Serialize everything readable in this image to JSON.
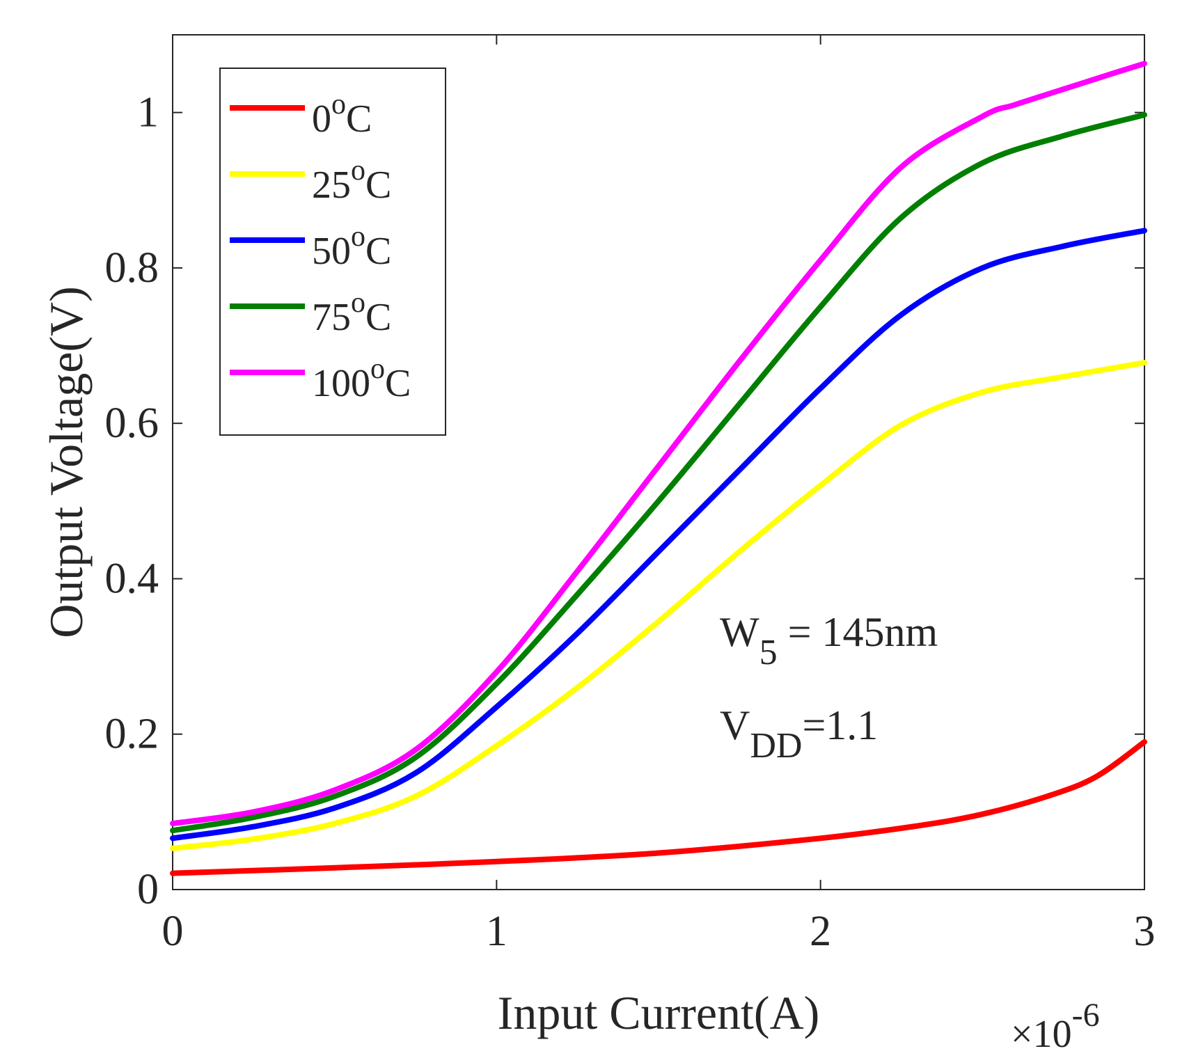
{
  "chart_data": {
    "type": "line",
    "xlabel": "Input Current(A)",
    "ylabel": "Output Voltage(V)",
    "x_multiplier_label": "×10",
    "x_multiplier_exponent": "-6",
    "xlim": [
      0,
      3
    ],
    "ylim": [
      0,
      1.1
    ],
    "x_ticks": [
      "0",
      "1",
      "2",
      "3"
    ],
    "y_ticks": [
      "0",
      "0.2",
      "0.4",
      "0.6",
      "0.8",
      "1"
    ],
    "x_units_scale": 1e-06,
    "legend_position": "top-left",
    "annotation": {
      "line1_main": "W",
      "line1_sub": "5",
      "line1_rest": " = 145nm",
      "line2_main": "V",
      "line2_sub": "DD",
      "line2_rest": "=1.1"
    },
    "series": [
      {
        "name": "0",
        "name_sup": "o",
        "name_suffix": "C",
        "color": "#ff0000",
        "x": [
          0,
          0.5,
          1.0,
          1.5,
          2.0,
          2.3,
          2.5,
          2.7,
          2.85,
          3.0
        ],
        "y": [
          0.021,
          0.028,
          0.036,
          0.047,
          0.066,
          0.082,
          0.097,
          0.12,
          0.145,
          0.19
        ]
      },
      {
        "name": "25",
        "name_sup": "o",
        "name_suffix": "C",
        "color": "#ffff00",
        "x": [
          0,
          0.25,
          0.5,
          0.75,
          1.0,
          1.25,
          1.5,
          1.75,
          2.0,
          2.25,
          2.5,
          2.75,
          3.0
        ],
        "y": [
          0.053,
          0.065,
          0.085,
          0.12,
          0.185,
          0.26,
          0.345,
          0.435,
          0.52,
          0.598,
          0.64,
          0.66,
          0.678
        ]
      },
      {
        "name": "50",
        "name_sup": "o",
        "name_suffix": "C",
        "color": "#0000ff",
        "x": [
          0,
          0.25,
          0.5,
          0.75,
          1.0,
          1.25,
          1.5,
          1.75,
          2.0,
          2.25,
          2.5,
          2.75,
          3.0
        ],
        "y": [
          0.066,
          0.081,
          0.105,
          0.15,
          0.235,
          0.33,
          0.435,
          0.54,
          0.645,
          0.74,
          0.8,
          0.828,
          0.848
        ]
      },
      {
        "name": "75",
        "name_sup": "o",
        "name_suffix": "C",
        "color": "#007f00",
        "x": [
          0,
          0.25,
          0.5,
          0.75,
          1.0,
          1.25,
          1.5,
          1.75,
          2.0,
          2.25,
          2.5,
          2.75,
          3.0
        ],
        "y": [
          0.076,
          0.093,
          0.12,
          0.17,
          0.265,
          0.38,
          0.5,
          0.625,
          0.75,
          0.865,
          0.935,
          0.97,
          0.997
        ]
      },
      {
        "name": "100",
        "name_sup": "o",
        "name_suffix": "C",
        "color": "#ff00ff",
        "x": [
          0,
          0.25,
          0.5,
          0.75,
          1.0,
          1.25,
          1.5,
          1.75,
          2.0,
          2.25,
          2.5,
          2.6,
          2.75,
          2.9,
          3.0
        ],
        "y": [
          0.085,
          0.1,
          0.128,
          0.18,
          0.28,
          0.41,
          0.545,
          0.68,
          0.81,
          0.93,
          0.995,
          1.01,
          1.03,
          1.05,
          1.063
        ]
      }
    ]
  }
}
